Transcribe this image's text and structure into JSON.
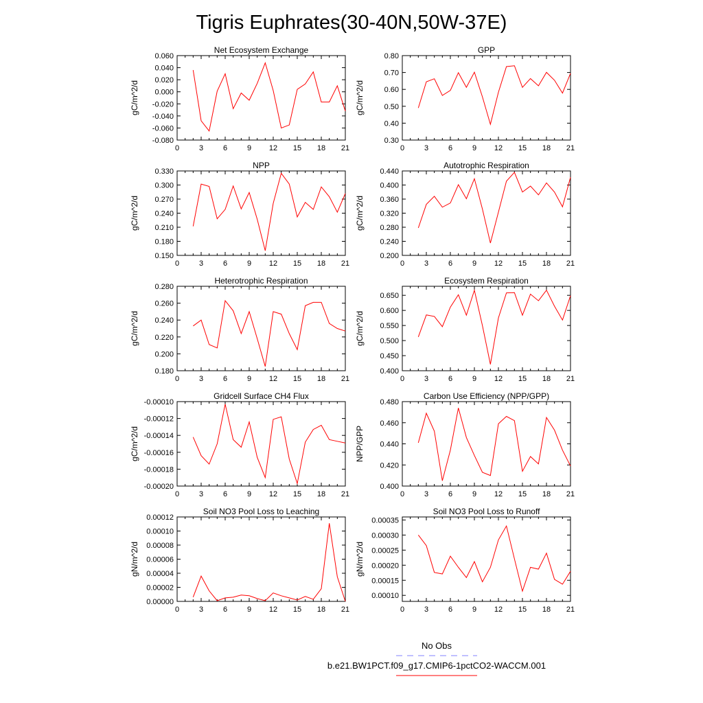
{
  "title": "Tigris Euphrates(30-40N,50W-37E)",
  "chart_data": [
    {
      "type": "line",
      "title": "Net Ecosystem Exchange",
      "ylabel": "gC/m^2/d",
      "xlim": [
        0,
        21
      ],
      "ylim": [
        -0.08,
        0.06
      ],
      "x_ticks": [
        "0",
        "3",
        "6",
        "9",
        "12",
        "15",
        "18",
        "21"
      ],
      "y_ticks": [
        "-0.080",
        "-0.060",
        "-0.040",
        "-0.020",
        "0.000",
        "0.020",
        "0.040",
        "0.060"
      ],
      "x": [
        2,
        3,
        4,
        5,
        6,
        7,
        8,
        9,
        10,
        11,
        12,
        13,
        14,
        15,
        16,
        17,
        18,
        19,
        20,
        21
      ],
      "series": [
        {
          "values": [
            0.036,
            -0.048,
            -0.065,
            0.001,
            0.03,
            -0.028,
            -0.002,
            -0.014,
            0.014,
            0.048,
            0.002,
            -0.06,
            -0.055,
            0.004,
            0.013,
            0.033,
            -0.017,
            -0.017,
            0.01,
            -0.032
          ],
          "color": "#ff0000"
        }
      ]
    },
    {
      "type": "line",
      "title": "GPP",
      "ylabel": "gC/m^2/d",
      "xlim": [
        0,
        21
      ],
      "ylim": [
        0.3,
        0.8
      ],
      "x_ticks": [
        "0",
        "3",
        "6",
        "9",
        "12",
        "15",
        "18",
        "21"
      ],
      "y_ticks": [
        "0.30",
        "0.40",
        "0.50",
        "0.60",
        "0.70",
        "0.80"
      ],
      "x": [
        2,
        3,
        4,
        5,
        6,
        7,
        8,
        9,
        10,
        11,
        12,
        13,
        14,
        15,
        16,
        17,
        18,
        19,
        20,
        21
      ],
      "series": [
        {
          "values": [
            0.49,
            0.645,
            0.663,
            0.564,
            0.594,
            0.699,
            0.612,
            0.702,
            0.556,
            0.393,
            0.583,
            0.735,
            0.74,
            0.612,
            0.664,
            0.621,
            0.701,
            0.654,
            0.578,
            0.695
          ],
          "color": "#ff0000"
        }
      ]
    },
    {
      "type": "line",
      "title": "NPP",
      "ylabel": "gC/m^2/d",
      "xlim": [
        0,
        21
      ],
      "ylim": [
        0.15,
        0.33
      ],
      "x_ticks": [
        "0",
        "3",
        "6",
        "9",
        "12",
        "15",
        "18",
        "21"
      ],
      "y_ticks": [
        "0.150",
        "0.180",
        "0.210",
        "0.240",
        "0.270",
        "0.300",
        "0.330"
      ],
      "x": [
        2,
        3,
        4,
        5,
        6,
        7,
        8,
        9,
        10,
        11,
        12,
        13,
        14,
        15,
        16,
        17,
        18,
        19,
        20,
        21
      ],
      "series": [
        {
          "values": [
            0.212,
            0.302,
            0.297,
            0.228,
            0.248,
            0.298,
            0.249,
            0.284,
            0.227,
            0.16,
            0.261,
            0.325,
            0.302,
            0.232,
            0.263,
            0.248,
            0.296,
            0.275,
            0.242,
            0.282
          ],
          "color": "#ff0000"
        }
      ]
    },
    {
      "type": "line",
      "title": "Autotrophic Respiration",
      "ylabel": "gC/m^2/d",
      "xlim": [
        0,
        21
      ],
      "ylim": [
        0.2,
        0.44
      ],
      "x_ticks": [
        "0",
        "3",
        "6",
        "9",
        "12",
        "15",
        "18",
        "21"
      ],
      "y_ticks": [
        "0.200",
        "0.240",
        "0.280",
        "0.320",
        "0.360",
        "0.400",
        "0.440"
      ],
      "x": [
        2,
        3,
        4,
        5,
        6,
        7,
        8,
        9,
        10,
        11,
        12,
        13,
        14,
        15,
        16,
        17,
        18,
        19,
        20,
        21
      ],
      "series": [
        {
          "values": [
            0.278,
            0.345,
            0.368,
            0.337,
            0.349,
            0.401,
            0.361,
            0.418,
            0.332,
            0.235,
            0.323,
            0.411,
            0.436,
            0.38,
            0.397,
            0.372,
            0.406,
            0.38,
            0.338,
            0.422
          ],
          "color": "#ff0000"
        }
      ]
    },
    {
      "type": "line",
      "title": "Heterotrophic Respiration",
      "ylabel": "gC/m^2/d",
      "xlim": [
        0,
        21
      ],
      "ylim": [
        0.18,
        0.28
      ],
      "x_ticks": [
        "0",
        "3",
        "6",
        "9",
        "12",
        "15",
        "18",
        "21"
      ],
      "y_ticks": [
        "0.180",
        "0.200",
        "0.220",
        "0.240",
        "0.260",
        "0.280"
      ],
      "x": [
        2,
        3,
        4,
        5,
        6,
        7,
        8,
        9,
        10,
        11,
        12,
        13,
        14,
        15,
        16,
        17,
        18,
        19,
        20,
        21
      ],
      "series": [
        {
          "values": [
            0.233,
            0.24,
            0.211,
            0.207,
            0.263,
            0.251,
            0.224,
            0.25,
            0.218,
            0.185,
            0.25,
            0.247,
            0.224,
            0.205,
            0.257,
            0.261,
            0.261,
            0.236,
            0.23,
            0.227
          ],
          "color": "#ff0000"
        }
      ]
    },
    {
      "type": "line",
      "title": "Ecosystem Respiration",
      "ylabel": "gC/m^2/d",
      "xlim": [
        0,
        21
      ],
      "ylim": [
        0.4,
        0.68
      ],
      "x_ticks": [
        "0",
        "3",
        "6",
        "9",
        "12",
        "15",
        "18",
        "21"
      ],
      "y_ticks": [
        "0.400",
        "0.450",
        "0.500",
        "0.550",
        "0.600",
        "0.650"
      ],
      "x": [
        2,
        3,
        4,
        5,
        6,
        7,
        8,
        9,
        10,
        11,
        12,
        13,
        14,
        15,
        16,
        17,
        18,
        19,
        20,
        21
      ],
      "series": [
        {
          "values": [
            0.512,
            0.585,
            0.58,
            0.546,
            0.611,
            0.652,
            0.584,
            0.667,
            0.55,
            0.421,
            0.575,
            0.658,
            0.659,
            0.584,
            0.654,
            0.632,
            0.667,
            0.614,
            0.568,
            0.649
          ],
          "color": "#ff0000"
        }
      ]
    },
    {
      "type": "line",
      "title": "Gridcell Surface CH4 Flux",
      "ylabel": "gC/m^2/d",
      "xlim": [
        0,
        21
      ],
      "ylim": [
        -0.0002,
        -0.0001
      ],
      "x_ticks": [
        "0",
        "3",
        "6",
        "9",
        "12",
        "15",
        "18",
        "21"
      ],
      "y_ticks": [
        "-0.00020",
        "-0.00018",
        "-0.00016",
        "-0.00014",
        "-0.00012",
        "-0.00010"
      ],
      "x": [
        2,
        3,
        4,
        5,
        6,
        7,
        8,
        9,
        10,
        11,
        12,
        13,
        14,
        15,
        16,
        17,
        18,
        19,
        20,
        21
      ],
      "series": [
        {
          "values": [
            -0.000142,
            -0.000164,
            -0.000174,
            -0.00015,
            -0.000103,
            -0.000145,
            -0.000154,
            -0.000124,
            -0.000166,
            -0.00019,
            -0.000121,
            -0.000118,
            -0.000168,
            -0.000197,
            -0.000148,
            -0.000133,
            -0.000128,
            -0.000145,
            -0.000147,
            -0.000149
          ],
          "color": "#ff0000"
        }
      ]
    },
    {
      "type": "line",
      "title": "Carbon Use Efficiency (NPP/GPP)",
      "ylabel": "NPP/GPP",
      "xlim": [
        0,
        21
      ],
      "ylim": [
        0.4,
        0.48
      ],
      "x_ticks": [
        "0",
        "3",
        "6",
        "9",
        "12",
        "15",
        "18",
        "21"
      ],
      "y_ticks": [
        "0.400",
        "0.420",
        "0.440",
        "0.460",
        "0.480"
      ],
      "x": [
        2,
        3,
        4,
        5,
        6,
        7,
        8,
        9,
        10,
        11,
        12,
        13,
        14,
        15,
        16,
        17,
        18,
        19,
        20,
        21
      ],
      "series": [
        {
          "values": [
            0.441,
            0.469,
            0.452,
            0.405,
            0.434,
            0.474,
            0.446,
            0.429,
            0.413,
            0.41,
            0.459,
            0.466,
            0.462,
            0.414,
            0.428,
            0.421,
            0.465,
            0.453,
            0.434,
            0.419
          ],
          "color": "#ff0000"
        }
      ]
    },
    {
      "type": "line",
      "title": "Soil NO3 Pool Loss to Leaching",
      "ylabel": "gN/m^2/d",
      "xlim": [
        0,
        21
      ],
      "ylim": [
        0,
        0.00012
      ],
      "x_ticks": [
        "0",
        "3",
        "6",
        "9",
        "12",
        "15",
        "18",
        "21"
      ],
      "y_ticks": [
        "0.00000",
        "0.00002",
        "0.00004",
        "0.00006",
        "0.00008",
        "0.00010",
        "0.00012"
      ],
      "x": [
        2,
        3,
        4,
        5,
        6,
        7,
        8,
        9,
        10,
        11,
        12,
        13,
        14,
        15,
        16,
        17,
        18,
        19,
        20,
        21
      ],
      "series": [
        {
          "values": [
            6e-06,
            3.6e-05,
            1.5e-05,
            1e-06,
            5e-06,
            6e-06,
            9e-06,
            8e-06,
            4e-06,
            1e-06,
            1.2e-05,
            8e-06,
            5e-06,
            2e-06,
            7e-06,
            3e-06,
            1.8e-05,
            0.000111,
            3.5e-05,
            0.0
          ],
          "color": "#ff0000"
        }
      ]
    },
    {
      "type": "line",
      "title": "Soil NO3 Pool Loss to Runoff",
      "ylabel": "gN/m^2/d",
      "xlim": [
        0,
        21
      ],
      "ylim": [
        8e-05,
        0.00036
      ],
      "x_ticks": [
        "0",
        "3",
        "6",
        "9",
        "12",
        "15",
        "18",
        "21"
      ],
      "y_ticks": [
        "0.00010",
        "0.00015",
        "0.00020",
        "0.00025",
        "0.00030",
        "0.00035"
      ],
      "x": [
        2,
        3,
        4,
        5,
        6,
        7,
        8,
        9,
        10,
        11,
        12,
        13,
        14,
        15,
        16,
        17,
        18,
        19,
        20,
        21
      ],
      "series": [
        {
          "values": [
            0.0003,
            0.000265,
            0.000176,
            0.000171,
            0.00023,
            0.000193,
            0.000159,
            0.000212,
            0.000145,
            0.000193,
            0.000284,
            0.00033,
            0.000221,
            0.000114,
            0.000193,
            0.000187,
            0.00024,
            0.000153,
            0.000137,
            0.00018
          ],
          "color": "#ff0000"
        }
      ]
    }
  ],
  "legend": {
    "items": [
      {
        "label": "No Obs",
        "color": "#8080ff",
        "dash": true
      },
      {
        "label": "b.e21.BW1PCT.f09_g17.CMIP6-1pctCO2-WACCM.001",
        "color": "#ff0000",
        "dash": false
      }
    ]
  }
}
